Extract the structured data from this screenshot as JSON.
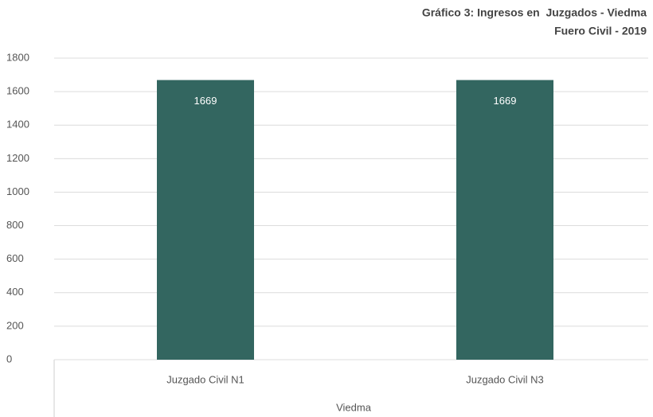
{
  "chart_data": {
    "type": "bar",
    "title": "Gráfico 3: Ingresos en  Juzgados - Viedma",
    "subtitle": "Fuero Civil - 2019",
    "categories": [
      "Juzgado Civil N1",
      "Juzgado Civil N3"
    ],
    "values": [
      1669,
      1669
    ],
    "color": "#336660",
    "group_label": "Viedma",
    "ylim": [
      0,
      1800
    ],
    "yticks": [
      0,
      200,
      400,
      600,
      800,
      1000,
      1200,
      1400,
      1600,
      1800
    ],
    "grid": true
  }
}
